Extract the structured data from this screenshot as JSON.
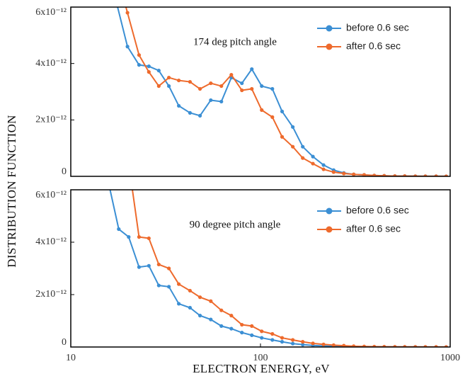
{
  "chart_data": [
    {
      "type": "line",
      "annotation": "174 deg pitch angle",
      "ylabel": "DISTRIBUTION FUNCTION",
      "log_x": true,
      "xlim": [
        10,
        1000
      ],
      "ylim": [
        0,
        6e-12
      ],
      "yticks": [
        0,
        {
          "value": 2e-12,
          "label": "2x10⁻¹²"
        },
        {
          "value": 4e-12,
          "label": "4x10⁻¹²"
        },
        {
          "value": 6e-12,
          "label": "6x10⁻¹²"
        }
      ],
      "x": [
        16.2,
        19.9,
        22.9,
        25.8,
        29.1,
        32.9,
        37.1,
        42.5,
        48.0,
        54.7,
        62.2,
        70.2,
        79.8,
        90.0,
        101.5,
        115.5,
        130,
        148,
        167,
        189,
        215,
        243,
        275,
        310,
        352,
        398,
        449,
        511,
        576,
        655,
        740,
        843,
        953
      ],
      "series": [
        {
          "name": "before 0.6 sec",
          "color": "#3b8fd4",
          "values": [
            7e-12,
            4.6e-12,
            3.95e-12,
            3.9e-12,
            3.75e-12,
            3.2e-12,
            2.5e-12,
            2.25e-12,
            2.15e-12,
            2.7e-12,
            2.65e-12,
            3.5e-12,
            3.3e-12,
            3.8e-12,
            3.2e-12,
            3.1e-12,
            2.3e-12,
            1.75e-12,
            1.05e-12,
            7e-13,
            4e-13,
            2.2e-13,
            1.2e-13,
            7e-14,
            5e-14,
            3e-14,
            2e-14,
            1e-14,
            9e-15,
            5e-15,
            4e-15,
            3e-15,
            2e-15
          ]
        },
        {
          "name": "after 0.6 sec",
          "color": "#ee6a2c",
          "values": [
            8e-12,
            5.8e-12,
            4.3e-12,
            3.7e-12,
            3.2e-12,
            3.5e-12,
            3.4e-12,
            3.35e-12,
            3.1e-12,
            3.3e-12,
            3.2e-12,
            3.6e-12,
            3.05e-12,
            3.1e-12,
            2.35e-12,
            2.1e-12,
            1.4e-12,
            1.05e-12,
            6.5e-13,
            4.5e-13,
            2.5e-13,
            1.5e-13,
            1e-13,
            7e-14,
            5e-14,
            3e-14,
            2e-14,
            1e-14,
            9e-15,
            5e-15,
            4e-15,
            3e-15,
            2e-15
          ]
        }
      ]
    },
    {
      "type": "line",
      "annotation": "90 degree pitch angle",
      "xlabel": "ELECTRON ENERGY, eV",
      "log_x": true,
      "xlim": [
        10,
        1000
      ],
      "ylim": [
        0,
        6e-12
      ],
      "xticks": [
        10,
        100,
        1000
      ],
      "yticks": [
        0,
        {
          "value": 2e-12,
          "label": "2x10⁻¹²"
        },
        {
          "value": 4e-12,
          "label": "4x10⁻¹²"
        },
        {
          "value": 6e-12,
          "label": "6x10⁻¹²"
        }
      ],
      "x": [
        14.5,
        17.9,
        20.2,
        22.9,
        25.8,
        29.1,
        32.9,
        37.1,
        42.5,
        48.0,
        54.7,
        62.2,
        70.2,
        79.8,
        90.0,
        101.5,
        115.5,
        130,
        148,
        167,
        189,
        215,
        243,
        275,
        310,
        352,
        398,
        449,
        511,
        576,
        655,
        740,
        843,
        953
      ],
      "series": [
        {
          "name": "before 0.6 sec",
          "color": "#3b8fd4",
          "values": [
            7.5e-12,
            4.5e-12,
            4.2e-12,
            3.05e-12,
            3.1e-12,
            2.35e-12,
            2.3e-12,
            1.65e-12,
            1.5e-12,
            1.2e-12,
            1.05e-12,
            8e-13,
            7e-13,
            5.5e-13,
            4.5e-13,
            3.5e-13,
            2.7e-13,
            2e-13,
            1.3e-13,
            9e-14,
            6e-14,
            4e-14,
            3e-14,
            2e-14,
            1.5e-14,
            1e-14,
            8e-15,
            6e-15,
            5e-15,
            4e-15,
            3e-15,
            2e-15,
            1.5e-15,
            1e-15
          ]
        },
        {
          "name": "after 0.6 sec",
          "color": "#ee6a2c",
          "values": [
            null,
            null,
            7e-12,
            4.2e-12,
            4.15e-12,
            3.15e-12,
            3e-12,
            2.4e-12,
            2.15e-12,
            1.9e-12,
            1.75e-12,
            1.4e-12,
            1.2e-12,
            8.5e-13,
            8e-13,
            6e-13,
            5e-13,
            3.5e-13,
            2.7e-13,
            2e-13,
            1.4e-13,
            1e-13,
            7e-14,
            5e-14,
            3e-14,
            2e-14,
            1.5e-14,
            1e-14,
            8e-15,
            6e-15,
            5e-15,
            4e-15,
            3e-15,
            2e-15
          ]
        }
      ]
    }
  ]
}
